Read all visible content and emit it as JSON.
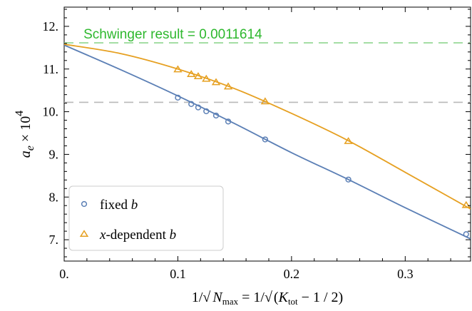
{
  "chart_data": {
    "type": "scatter",
    "x_tick_labels": [
      "0.",
      "0.1",
      "0.2",
      "0.3"
    ],
    "y_tick_labels": [
      "7.",
      "8.",
      "9.",
      "10.",
      "11.",
      "12."
    ],
    "x_ticks": [
      0,
      0.1,
      0.2,
      0.3
    ],
    "y_ticks": [
      7,
      8,
      9,
      10,
      11,
      12
    ],
    "xlim": [
      0,
      0.3575
    ],
    "ylim": [
      6.5,
      12.45
    ],
    "xlabel": "1/√ N_max = 1/√ (K_tot − 1/2)",
    "ylabel": "a_e × 10^4",
    "grid": false,
    "legend_position": "bottom-left",
    "reference_lines": [
      {
        "y": 11.614,
        "color": "#8fd68f",
        "style": "dashed"
      },
      {
        "y": 10.22,
        "color": "#b8b8b8",
        "style": "dashed"
      }
    ],
    "annotations": [
      {
        "text": "Schwinger result = 0.0011614",
        "x": 0.012,
        "y": 11.614,
        "color": "#2eb82e"
      }
    ],
    "series": [
      {
        "name": "fixed b",
        "marker": "circle",
        "color": "#5b7fb5",
        "x": [
          0.1,
          0.1118,
          0.1179,
          0.125,
          0.1336,
          0.1443,
          0.1768,
          0.25,
          0.3536
        ],
        "y": [
          10.33,
          10.18,
          10.1,
          10.01,
          9.91,
          9.77,
          9.35,
          8.41,
          7.13
        ],
        "fit_x": [
          0,
          0.05,
          0.1,
          0.15,
          0.2,
          0.25,
          0.3,
          0.3575
        ],
        "fit_y": [
          11.56,
          10.98,
          10.37,
          9.72,
          9.04,
          8.41,
          7.75,
          7.02
        ]
      },
      {
        "name": "x-dependent b",
        "marker": "triangle",
        "color": "#e6a021",
        "x": [
          0.1,
          0.1118,
          0.1179,
          0.125,
          0.1336,
          0.1443,
          0.1768,
          0.25,
          0.3536
        ],
        "y": [
          10.99,
          10.88,
          10.83,
          10.77,
          10.69,
          10.59,
          10.24,
          9.31,
          7.81
        ],
        "fit_x": [
          0,
          0.05,
          0.1,
          0.15,
          0.2,
          0.25,
          0.3,
          0.3575
        ],
        "fit_y": [
          11.58,
          11.36,
          11.0,
          10.54,
          9.96,
          9.32,
          8.58,
          7.72
        ]
      }
    ]
  }
}
